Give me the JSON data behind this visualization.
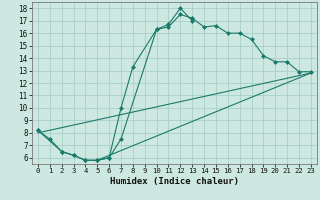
{
  "xlabel": "Humidex (Indice chaleur)",
  "background_color": "#cde8e0",
  "grid_color": "#a8cfc7",
  "line_color": "#1a7a6a",
  "xlim": [
    -0.5,
    23.5
  ],
  "ylim": [
    5.5,
    18.5
  ],
  "xticks": [
    0,
    1,
    2,
    3,
    4,
    5,
    6,
    7,
    8,
    9,
    10,
    11,
    12,
    13,
    14,
    15,
    16,
    17,
    18,
    19,
    20,
    21,
    22,
    23
  ],
  "yticks": [
    6,
    7,
    8,
    9,
    10,
    11,
    12,
    13,
    14,
    15,
    16,
    17,
    18
  ],
  "line1_x": [
    0,
    1,
    2,
    3,
    4,
    5,
    6,
    7,
    10,
    11,
    12,
    13,
    14,
    15,
    16,
    17,
    18,
    19,
    20,
    21,
    22,
    23
  ],
  "line1_y": [
    8.2,
    7.5,
    6.5,
    6.2,
    5.8,
    5.8,
    6.0,
    7.5,
    16.3,
    16.5,
    17.5,
    17.2,
    16.5,
    16.6,
    16.0,
    16.0,
    15.5,
    14.2,
    13.7,
    13.7,
    12.9,
    12.9
  ],
  "line2_x": [
    0,
    2,
    3,
    4,
    5,
    6,
    7,
    8,
    10,
    11,
    12,
    13
  ],
  "line2_y": [
    8.2,
    6.5,
    6.2,
    5.8,
    5.8,
    6.0,
    10.0,
    13.3,
    16.3,
    16.7,
    18.0,
    17.0
  ],
  "line3_x": [
    0,
    23
  ],
  "line3_y": [
    8.0,
    12.8
  ],
  "line4_x": [
    5,
    23
  ],
  "line4_y": [
    5.8,
    12.8
  ]
}
